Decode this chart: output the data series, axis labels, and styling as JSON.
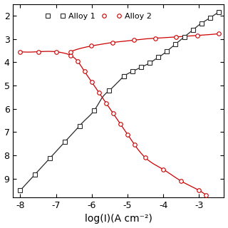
{
  "xlabel": "log(I)(A cm⁻²)",
  "xlim": [
    -8.2,
    -2.3
  ],
  "ylim": [
    9.8,
    1.5
  ],
  "yticks": [
    2,
    3,
    4,
    5,
    6,
    7,
    8,
    9
  ],
  "xticks": [
    -8,
    -7,
    -6,
    -5,
    -4,
    -3
  ],
  "alloy1_color": "#2a2a2a",
  "alloy2_color": "#cc0000",
  "legend_labels": [
    "Alloy 1",
    "Alloy 2"
  ],
  "background_color": "#ffffff",
  "alloy1_cathodic_x": [
    -8.0,
    -7.7,
    -7.4,
    -7.1,
    -6.8,
    -6.5,
    -6.2,
    -5.9,
    -5.7,
    -5.5,
    -5.3,
    -5.1
  ],
  "alloy1_cathodic_y": [
    9.5,
    9.0,
    8.5,
    8.0,
    7.5,
    7.0,
    6.5,
    6.0,
    5.5,
    5.2,
    4.9,
    4.6
  ],
  "alloy1_anodic_x": [
    -5.1,
    -5.0,
    -4.8,
    -4.6,
    -4.4,
    -4.2,
    -4.0,
    -3.8,
    -3.6,
    -3.4,
    -3.2,
    -3.0,
    -2.8,
    -2.6,
    -2.45
  ],
  "alloy1_anodic_y": [
    4.6,
    4.5,
    4.35,
    4.2,
    4.05,
    3.85,
    3.65,
    3.4,
    3.15,
    2.9,
    2.65,
    2.4,
    2.2,
    2.0,
    1.85
  ],
  "alloy2_cathodic_x": [
    -8.0,
    -7.5,
    -7.0,
    -6.8,
    -6.6,
    -6.4,
    -6.2,
    -6.0,
    -5.8,
    -5.6,
    -5.4,
    -5.2,
    -5.0,
    -4.8,
    -4.5,
    -4.0,
    -3.5,
    -3.0,
    -2.8
  ],
  "alloy2_cathodic_y": [
    3.55,
    3.55,
    3.55,
    3.6,
    3.7,
    3.95,
    4.4,
    4.85,
    5.3,
    5.75,
    6.2,
    6.65,
    7.1,
    7.55,
    8.1,
    8.6,
    9.1,
    9.5,
    9.7
  ],
  "alloy2_anodic_x": [
    -6.6,
    -6.3,
    -6.0,
    -5.7,
    -5.4,
    -5.1,
    -4.8,
    -4.5,
    -4.0,
    -3.5,
    -3.0,
    -2.6,
    -2.45
  ],
  "alloy2_anodic_y": [
    3.55,
    3.4,
    3.3,
    3.22,
    3.15,
    3.1,
    3.05,
    3.0,
    2.95,
    2.9,
    2.85,
    2.8,
    2.78
  ]
}
